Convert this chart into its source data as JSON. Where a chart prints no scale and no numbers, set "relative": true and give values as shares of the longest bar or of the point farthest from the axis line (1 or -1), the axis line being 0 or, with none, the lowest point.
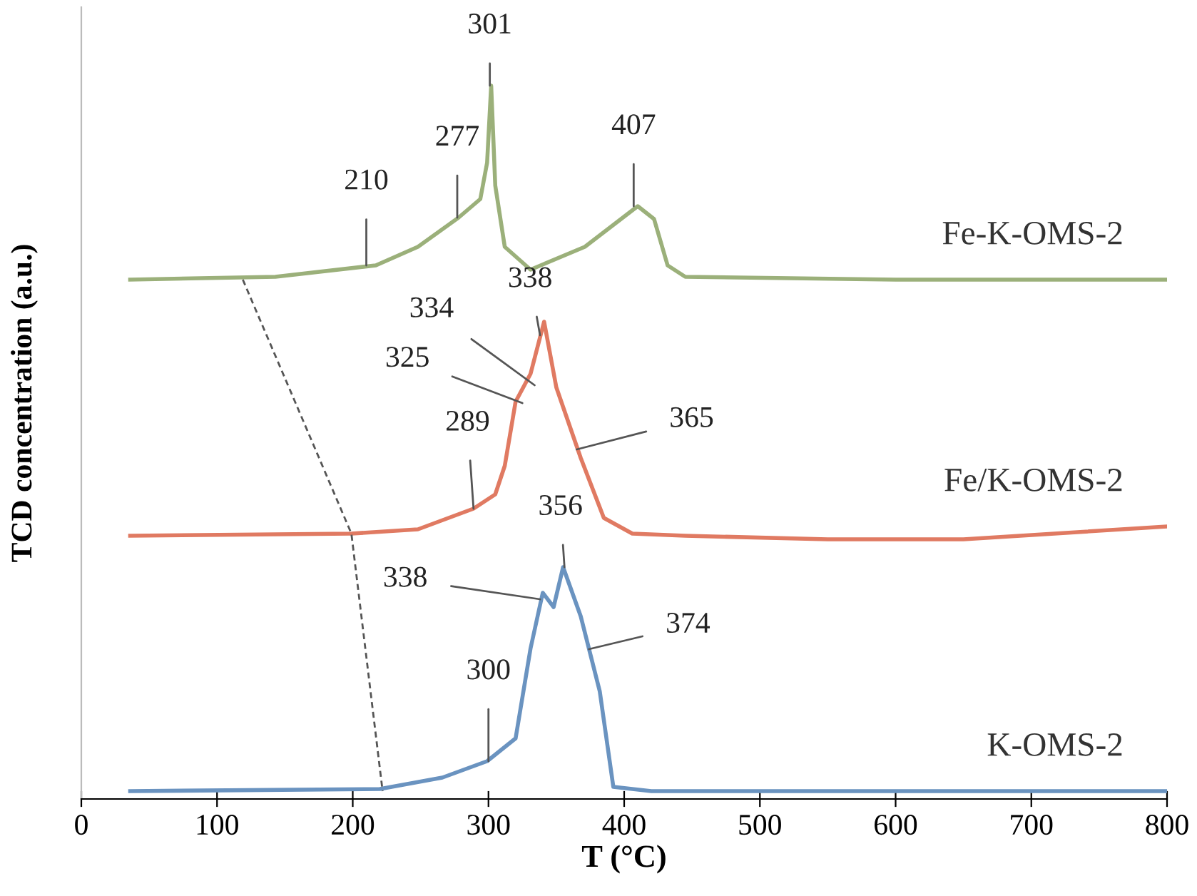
{
  "chart_data": {
    "type": "line",
    "relative": true,
    "xlabel": "T (°C)",
    "ylabel": "TCD concentration (a.u.)",
    "xlim": [
      0,
      800
    ],
    "xticks": [
      0,
      100,
      200,
      300,
      400,
      500,
      600,
      700,
      800
    ],
    "grid": false,
    "legend": false,
    "marker": "none",
    "series": [
      {
        "name": "Fe-K-OMS-2",
        "color": "#9bb07a",
        "x": [
          36,
          143,
          217,
          248,
          278,
          294,
          299,
          302,
          305,
          312,
          331,
          371,
          410,
          422,
          432,
          445,
          600,
          800
        ],
        "values": [
          0.728,
          0.732,
          0.748,
          0.774,
          0.815,
          0.841,
          0.892,
          1.0,
          0.86,
          0.774,
          0.742,
          0.774,
          0.831,
          0.813,
          0.748,
          0.732,
          0.728,
          0.728
        ]
      },
      {
        "name": "Fe/K-OMS-2",
        "color": "#e07a62",
        "x": [
          36,
          199,
          248,
          289,
          305,
          312,
          320,
          331,
          341,
          350,
          368,
          385,
          406,
          445,
          550,
          650,
          800
        ],
        "values": [
          0.369,
          0.372,
          0.378,
          0.407,
          0.427,
          0.467,
          0.557,
          0.596,
          0.669,
          0.577,
          0.478,
          0.394,
          0.372,
          0.369,
          0.364,
          0.364,
          0.382
        ]
      },
      {
        "name": "K-OMS-2",
        "color": "#6a93c0",
        "x": [
          36,
          220,
          266,
          299,
          320,
          331,
          340,
          348,
          355,
          368,
          382,
          392,
          420,
          800
        ],
        "values": [
          0.011,
          0.014,
          0.03,
          0.053,
          0.085,
          0.211,
          0.289,
          0.269,
          0.325,
          0.256,
          0.151,
          0.017,
          0.011,
          0.011
        ]
      },
      {
        "color": "#555555",
        "line_style": "dashed",
        "x": [
          119,
          199,
          222
        ],
        "values": [
          0.728,
          0.372,
          0.011
        ]
      }
    ],
    "annotations": [
      {
        "text": "210",
        "x": 210,
        "y": 0.748
      },
      {
        "text": "277",
        "x": 277,
        "y": 0.815
      },
      {
        "text": "301",
        "x": 301,
        "y": 1.0
      },
      {
        "text": "407",
        "x": 407,
        "y": 0.831
      },
      {
        "text": "289",
        "x": 289,
        "y": 0.407
      },
      {
        "text": "325",
        "x": 325,
        "y": 0.555
      },
      {
        "text": "334",
        "x": 334,
        "y": 0.58
      },
      {
        "text": "338",
        "x": 338,
        "y": 0.65
      },
      {
        "text": "365",
        "x": 365,
        "y": 0.49
      },
      {
        "text": "338",
        "x": 338,
        "y": 0.28
      },
      {
        "text": "356",
        "x": 356,
        "y": 0.325
      },
      {
        "text": "374",
        "x": 374,
        "y": 0.21
      },
      {
        "text": "300",
        "x": 300,
        "y": 0.053
      }
    ]
  }
}
